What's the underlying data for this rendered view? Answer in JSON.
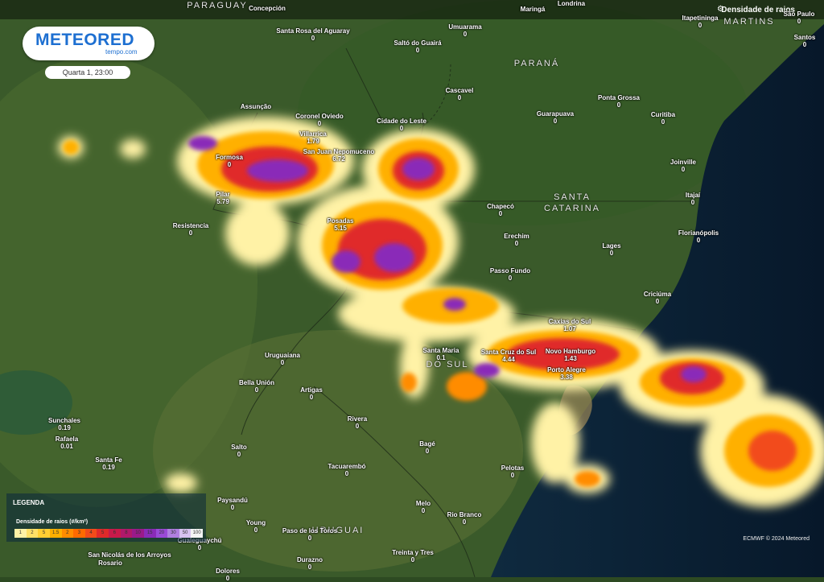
{
  "header": {
    "layer_label": "Densidade de raios"
  },
  "logo": {
    "brand": "METEORED",
    "sub": "tempo.com"
  },
  "time": "Quarta 1, 23:00",
  "credit": "ECMWF © 2024 Meteored",
  "legend": {
    "title": "LEGENDA",
    "subtitle": "Densidade de raios (#/km²)",
    "ticks": [
      "1",
      "2",
      "5",
      "1.5",
      "2",
      "3",
      "4",
      "5",
      "6",
      "8",
      "10",
      "15",
      "20",
      "30",
      "50",
      "100"
    ],
    "colors": [
      "#fff2a6",
      "#ffe066",
      "#ffcf33",
      "#ffb000",
      "#ff8c00",
      "#ff6a00",
      "#f24b1a",
      "#e02a2a",
      "#c91a4a",
      "#b0196a",
      "#9a1a8a",
      "#8a2bb8",
      "#9a4ad6",
      "#b07fe0",
      "#d6c2f0",
      "#f4f4f4"
    ]
  },
  "regions": [
    {
      "id": "paraguay",
      "text": "PARAGUAY"
    },
    {
      "id": "parana",
      "text": "PARANÁ"
    },
    {
      "id": "santa-catarina",
      "text": "SANTA\nCATARINA"
    },
    {
      "id": "martins",
      "text": "MARTINS"
    },
    {
      "id": "uruguai",
      "text": "URUGUAI"
    },
    {
      "id": "rs",
      "text": "DO SUL"
    }
  ],
  "cities": [
    {
      "name": "Concepción",
      "value": ""
    },
    {
      "name": "Maringá",
      "value": ""
    },
    {
      "name": "Londrina",
      "value": ""
    },
    {
      "name": "Itapetininga",
      "value": "0"
    },
    {
      "name": "São Paulo",
      "value": "0"
    },
    {
      "name": "Santos",
      "value": "0"
    },
    {
      "name": "Santa Rosa del Aguaray",
      "value": "0"
    },
    {
      "name": "Saltó do Guairá",
      "value": "0"
    },
    {
      "name": "Umuarama",
      "value": "0"
    },
    {
      "name": "Assunção",
      "value": ""
    },
    {
      "name": "Coronel Oviedo",
      "value": "0"
    },
    {
      "name": "Cidade do Leste",
      "value": "0"
    },
    {
      "name": "Cascavel",
      "value": "0"
    },
    {
      "name": "Guarapuava",
      "value": "0"
    },
    {
      "name": "Ponta Grossa",
      "value": "0"
    },
    {
      "name": "Curitiba",
      "value": "0"
    },
    {
      "name": "Villarrica",
      "value": "1.79"
    },
    {
      "name": "San Juan Nepomuceno",
      "value": "6.72"
    },
    {
      "name": "Formosa",
      "value": "0"
    },
    {
      "name": "Joinville",
      "value": "0"
    },
    {
      "name": "Pilar",
      "value": "5.79"
    },
    {
      "name": "Itajaí",
      "value": "0"
    },
    {
      "name": "Chapecó",
      "value": "0"
    },
    {
      "name": "Resistencia",
      "value": "0"
    },
    {
      "name": "Posadas",
      "value": "5.15"
    },
    {
      "name": "Erechim",
      "value": "0"
    },
    {
      "name": "Florianópolis",
      "value": "0"
    },
    {
      "name": "Lages",
      "value": "0"
    },
    {
      "name": "Passo Fundo",
      "value": "0"
    },
    {
      "name": "Criciúma",
      "value": "0"
    },
    {
      "name": "Caxias do Sul",
      "value": "1.07"
    },
    {
      "name": "Santa Maria",
      "value": "0.1"
    },
    {
      "name": "Santa Cruz do Sul",
      "value": "4.44"
    },
    {
      "name": "Novo Hamburgo",
      "value": "1.43"
    },
    {
      "name": "Uruguaiana",
      "value": "0"
    },
    {
      "name": "Porto Alegre",
      "value": "3.38"
    },
    {
      "name": "Bella Unión",
      "value": "0"
    },
    {
      "name": "Artigas",
      "value": "0"
    },
    {
      "name": "Sunchales",
      "value": "0.19"
    },
    {
      "name": "Rivera",
      "value": "0"
    },
    {
      "name": "Rafaela",
      "value": "0.01"
    },
    {
      "name": "Bagé",
      "value": "0"
    },
    {
      "name": "Salto",
      "value": "0"
    },
    {
      "name": "Santa Fe",
      "value": "0.19"
    },
    {
      "name": "Tacuarembó",
      "value": "0"
    },
    {
      "name": "Pelotas",
      "value": "0"
    },
    {
      "name": "Paysandú",
      "value": "0"
    },
    {
      "name": "Melo",
      "value": "0"
    },
    {
      "name": "Rio Branco",
      "value": "0"
    },
    {
      "name": "Young",
      "value": "0"
    },
    {
      "name": "Paso de los Toros",
      "value": "0"
    },
    {
      "name": "Gualeguaychú",
      "value": "0"
    },
    {
      "name": "Treinta y Tres",
      "value": "0"
    },
    {
      "name": "San Nicolás de los Arroyos",
      "value": ""
    },
    {
      "name": "Durazno",
      "value": "0"
    },
    {
      "name": "Dolores",
      "value": "0"
    },
    {
      "name": "Rosario",
      "value": ""
    }
  ]
}
